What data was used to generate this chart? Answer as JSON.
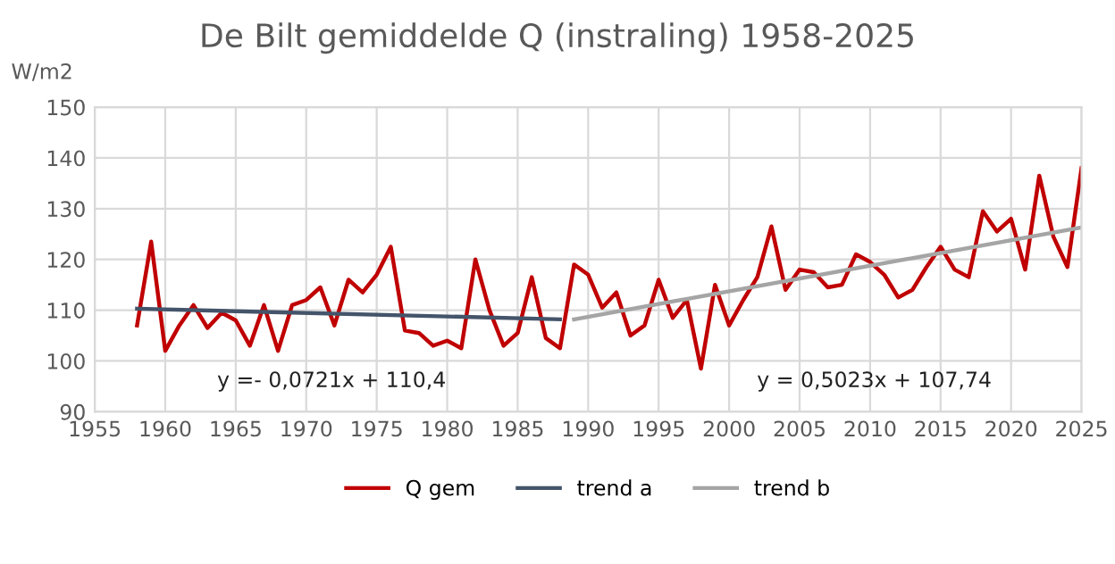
{
  "chart_data": {
    "type": "line",
    "title": "De Bilt gemiddelde Q (instraling) 1958-2025",
    "ylabel": "W/m2",
    "xlim": [
      1955,
      2025
    ],
    "xticks": [
      1955,
      1960,
      1965,
      1970,
      1975,
      1980,
      1985,
      1990,
      1995,
      2000,
      2005,
      2010,
      2015,
      2020,
      2025
    ],
    "ylim": [
      90,
      150
    ],
    "yticks": [
      90,
      100,
      110,
      120,
      130,
      140,
      150
    ],
    "grid": true,
    "legend": "bottom",
    "marker": "none",
    "line_style": "solid",
    "series": [
      {
        "name": "Q gem",
        "color": "#c00000",
        "x": [
          1958,
          1959,
          1960,
          1961,
          1962,
          1963,
          1964,
          1965,
          1966,
          1967,
          1968,
          1969,
          1970,
          1971,
          1972,
          1973,
          1974,
          1975,
          1976,
          1977,
          1978,
          1979,
          1980,
          1981,
          1982,
          1983,
          1984,
          1985,
          1986,
          1987,
          1988,
          1989,
          1990,
          1991,
          1992,
          1993,
          1994,
          1995,
          1996,
          1997,
          1998,
          1999,
          2000,
          2001,
          2002,
          2003,
          2004,
          2005,
          2006,
          2007,
          2008,
          2009,
          2010,
          2011,
          2012,
          2013,
          2014,
          2015,
          2016,
          2017,
          2018,
          2019,
          2020,
          2021,
          2022,
          2023,
          2024,
          2025
        ],
        "values": [
          107,
          123.5,
          102,
          107,
          111,
          106.5,
          109.5,
          108,
          103,
          111,
          102,
          111,
          112,
          114.5,
          107,
          116,
          113.5,
          117,
          122.5,
          106,
          105.5,
          103,
          104,
          102.5,
          120,
          110,
          103,
          105.5,
          116.5,
          104.5,
          102.5,
          119,
          117,
          110.5,
          113.5,
          105,
          107,
          116,
          108.5,
          112,
          98.5,
          115,
          107,
          112,
          116.5,
          126.5,
          114,
          118,
          117.5,
          114.5,
          115,
          121,
          119.5,
          117,
          112.5,
          114,
          118.5,
          122.5,
          118,
          116.5,
          129.5,
          125.5,
          128,
          118,
          136.5,
          124.5,
          118.5,
          138
        ]
      },
      {
        "name": "trend a",
        "color": "#44546a",
        "x": [
          1958,
          1988
        ],
        "values": [
          110.3,
          108.2
        ]
      },
      {
        "name": "trend b",
        "color": "#a5a5a5",
        "x": [
          1989,
          2025
        ],
        "values": [
          108.2,
          126.3
        ]
      }
    ],
    "annotations": [
      "y =- 0,0721x + 110,4",
      "y = 0,5023x + 107,74"
    ]
  }
}
